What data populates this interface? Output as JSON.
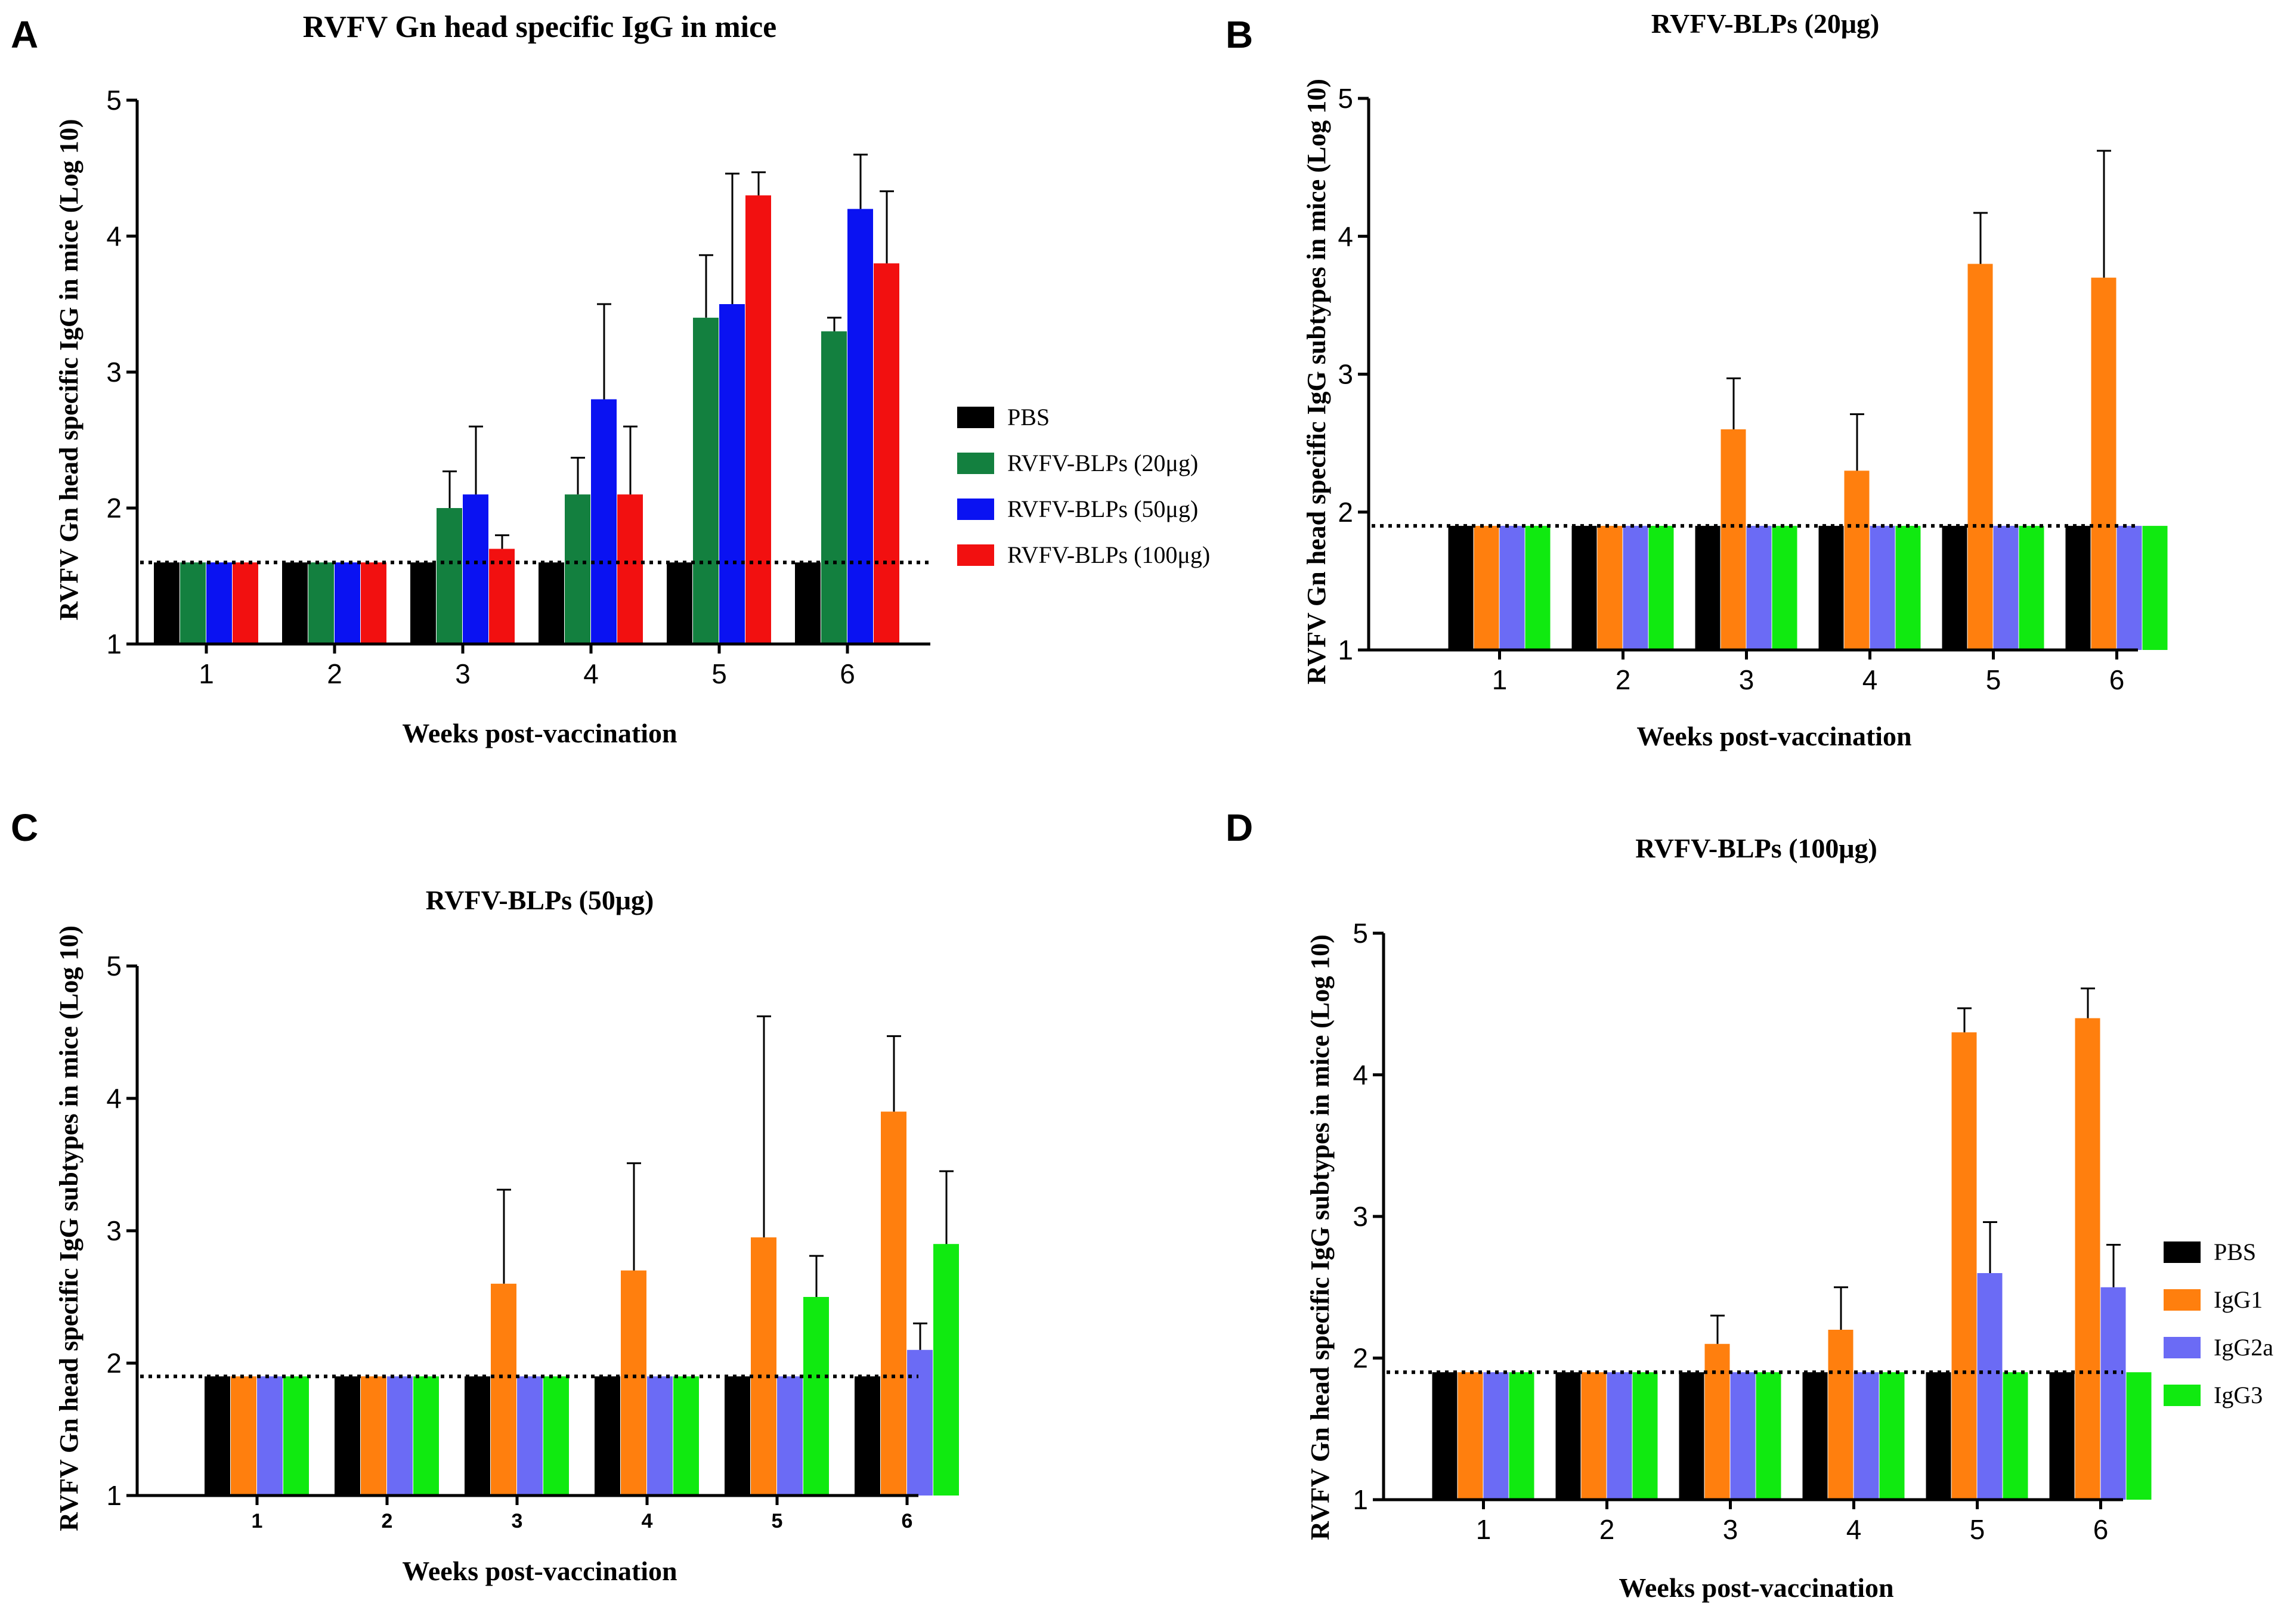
{
  "chart_data": [
    {
      "panel": "A",
      "type": "bar",
      "title": "RVFV Gn head specific IgG in mice",
      "xlabel": "Weeks post-vaccination",
      "ylabel": "RVFV Gn head specific IgG in mice  (Log 10)",
      "categories": [
        "1",
        "2",
        "3",
        "4",
        "5",
        "6"
      ],
      "ylim": [
        1,
        5
      ],
      "yticks": [
        "1",
        "2",
        "3",
        "4",
        "5"
      ],
      "baseline": 1.6,
      "legend": "right",
      "series": [
        {
          "name": "PBS",
          "color": "#000000",
          "values": [
            1.6,
            1.6,
            1.6,
            1.6,
            1.6,
            1.6
          ],
          "errors": [
            0,
            0,
            0,
            0,
            0,
            0
          ]
        },
        {
          "name": "RVFV-BLPs (20μg)",
          "color": "#13803f",
          "values": [
            1.6,
            1.6,
            2.0,
            2.1,
            3.4,
            3.3
          ],
          "errors": [
            0,
            0,
            0.27,
            0.27,
            0.46,
            0.1
          ]
        },
        {
          "name": "RVFV-BLPs (50μg)",
          "color": "#0a12f2",
          "values": [
            1.6,
            1.6,
            2.1,
            2.8,
            3.5,
            4.2
          ],
          "errors": [
            0,
            0,
            0.5,
            0.7,
            0.96,
            0.4
          ]
        },
        {
          "name": "RVFV-BLPs (100μg)",
          "color": "#f21010",
          "values": [
            1.6,
            1.6,
            1.7,
            2.1,
            4.3,
            3.8
          ],
          "errors": [
            0,
            0,
            0.1,
            0.5,
            0.17,
            0.53
          ]
        }
      ]
    },
    {
      "panel": "B",
      "type": "bar",
      "title": "RVFV-BLPs (20μg)",
      "xlabel": "Weeks post-vaccination",
      "ylabel": "RVFV Gn head specific IgG subtypes in mice  (Log 10)",
      "categories": [
        "1",
        "2",
        "3",
        "4",
        "5",
        "6"
      ],
      "ylim": [
        1,
        5
      ],
      "yticks": [
        "1",
        "2",
        "3",
        "4",
        "5"
      ],
      "baseline": 1.9,
      "legend": "none",
      "series": [
        {
          "name": "PBS",
          "color": "#000000",
          "values": [
            1.9,
            1.9,
            1.9,
            1.9,
            1.9,
            1.9
          ],
          "errors": [
            0,
            0,
            0,
            0,
            0,
            0
          ]
        },
        {
          "name": "IgG1",
          "color": "#ff7f0e",
          "values": [
            1.9,
            1.9,
            2.6,
            2.3,
            3.8,
            3.7
          ],
          "errors": [
            0,
            0,
            0.37,
            0.41,
            0.37,
            0.92
          ]
        },
        {
          "name": "IgG2a",
          "color": "#6b6bf5",
          "values": [
            1.9,
            1.9,
            1.9,
            1.9,
            1.9,
            1.9
          ],
          "errors": [
            0,
            0,
            0,
            0,
            0,
            0
          ]
        },
        {
          "name": "IgG3",
          "color": "#10ea10",
          "values": [
            1.9,
            1.9,
            1.9,
            1.9,
            1.9,
            1.9
          ],
          "errors": [
            0,
            0,
            0,
            0,
            0,
            0
          ]
        }
      ]
    },
    {
      "panel": "C",
      "type": "bar",
      "title": "RVFV-BLPs (50μg)",
      "xlabel": "Weeks post-vaccination",
      "ylabel": "RVFV Gn head specific IgG subtypes in mice  (Log 10)",
      "categories": [
        "1",
        "2",
        "3",
        "4",
        "5",
        "6"
      ],
      "ylim": [
        1,
        5
      ],
      "yticks": [
        "1",
        "2",
        "3",
        "4",
        "5"
      ],
      "baseline": 1.9,
      "legend": "none",
      "series": [
        {
          "name": "PBS",
          "color": "#000000",
          "values": [
            1.9,
            1.9,
            1.9,
            1.9,
            1.9,
            1.9
          ],
          "errors": [
            0,
            0,
            0,
            0,
            0,
            0
          ]
        },
        {
          "name": "IgG1",
          "color": "#ff7f0e",
          "values": [
            1.9,
            1.9,
            2.6,
            2.7,
            2.95,
            3.9
          ],
          "errors": [
            0,
            0,
            0.71,
            0.81,
            1.67,
            0.57
          ]
        },
        {
          "name": "IgG2a",
          "color": "#6b6bf5",
          "values": [
            1.9,
            1.9,
            1.9,
            1.9,
            1.9,
            2.1
          ],
          "errors": [
            0,
            0,
            0,
            0,
            0,
            0.2
          ]
        },
        {
          "name": "IgG3",
          "color": "#10ea10",
          "values": [
            1.9,
            1.9,
            1.9,
            1.9,
            2.5,
            2.9
          ],
          "errors": [
            0,
            0,
            0,
            0,
            0.31,
            0.55
          ]
        }
      ]
    },
    {
      "panel": "D",
      "type": "bar",
      "title": "RVFV-BLPs (100μg)",
      "xlabel": "Weeks post-vaccination",
      "ylabel": "RVFV Gn head specific IgG subtypes in mice  (Log 10)",
      "categories": [
        "1",
        "2",
        "3",
        "4",
        "5",
        "6"
      ],
      "ylim": [
        1,
        5
      ],
      "yticks": [
        "1",
        "2",
        "3",
        "4",
        "5"
      ],
      "baseline": 1.9,
      "legend": "right",
      "series": [
        {
          "name": "PBS",
          "color": "#000000",
          "values": [
            1.9,
            1.9,
            1.9,
            1.9,
            1.9,
            1.9
          ],
          "errors": [
            0,
            0,
            0,
            0,
            0,
            0
          ]
        },
        {
          "name": "IgG1",
          "color": "#ff7f0e",
          "values": [
            1.9,
            1.9,
            2.1,
            2.2,
            4.3,
            4.4
          ],
          "errors": [
            0,
            0,
            0.2,
            0.3,
            0.17,
            0.21
          ]
        },
        {
          "name": "IgG2a",
          "color": "#6b6bf5",
          "values": [
            1.9,
            1.9,
            1.9,
            1.9,
            2.6,
            2.5
          ],
          "errors": [
            0,
            0,
            0,
            0,
            0.36,
            0.3
          ]
        },
        {
          "name": "IgG3",
          "color": "#10ea10",
          "values": [
            1.9,
            1.9,
            1.9,
            1.9,
            1.9,
            1.9
          ],
          "errors": [
            0,
            0,
            0,
            0,
            0,
            0
          ]
        }
      ]
    }
  ]
}
